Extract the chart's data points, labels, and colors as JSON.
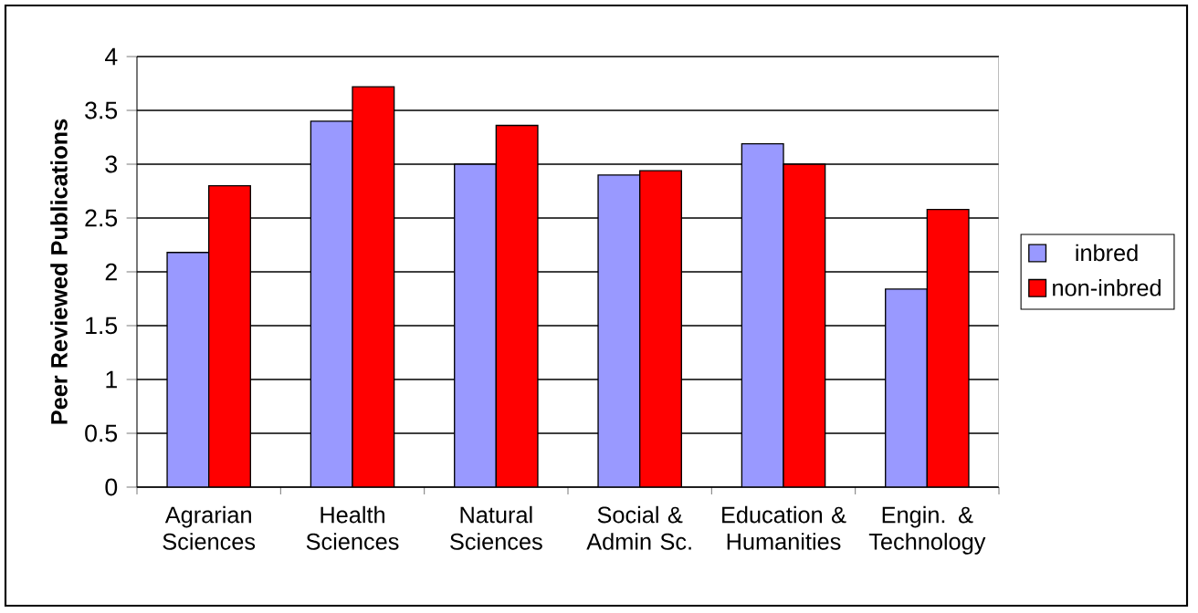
{
  "chart_data": {
    "type": "bar",
    "ylabel": "Peer Reviewed Publications",
    "categories": [
      "Agrarian Sciences",
      "Health Sciences",
      "Natural Sciences",
      "Social & Admin Sc.",
      "Education & Humanities",
      "Engin. & Technology"
    ],
    "series": [
      {
        "name": "inbred",
        "color": "#9999ff",
        "values": [
          2.18,
          3.4,
          3.0,
          2.9,
          3.19,
          1.84
        ]
      },
      {
        "name": "non-inbred",
        "color": "#ff0000",
        "values": [
          2.8,
          3.72,
          3.36,
          2.94,
          3.0,
          2.58
        ]
      }
    ],
    "ylim": [
      0,
      4
    ],
    "yticks": [
      0,
      0.5,
      1,
      1.5,
      2,
      2.5,
      3,
      3.5,
      4
    ],
    "grid": "y",
    "legend": "right"
  }
}
